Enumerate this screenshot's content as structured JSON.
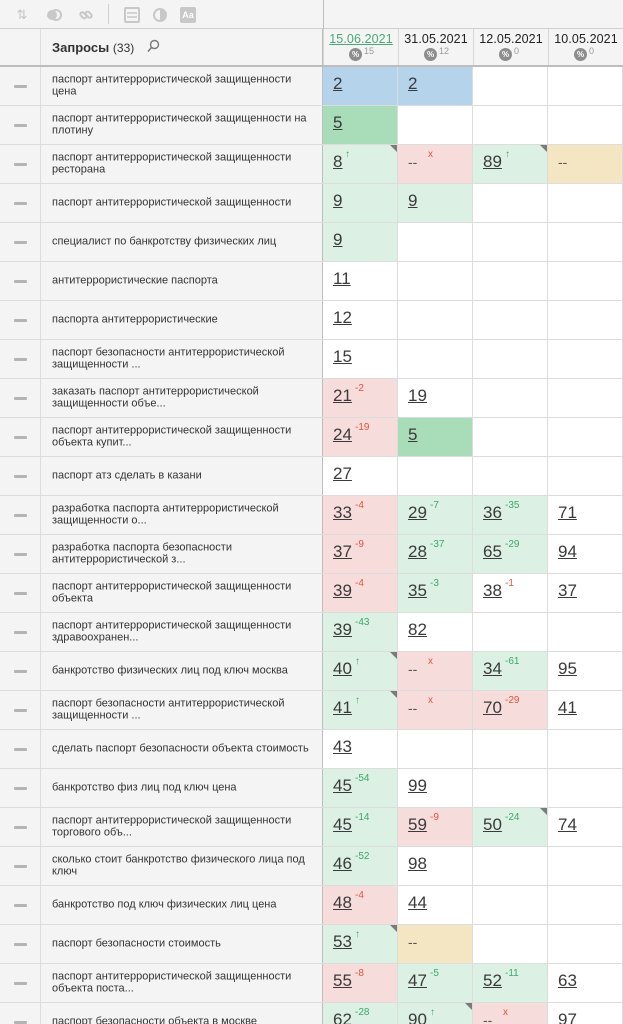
{
  "toolbar": {
    "icons": [
      "sort-icon",
      "toggle-icon",
      "link-icon",
      "table-icon",
      "contrast-icon",
      "text-icon"
    ]
  },
  "header": {
    "title": "Запросы",
    "count": "(33)",
    "dates": [
      {
        "label": "15.06.2021",
        "count": "15",
        "active": true
      },
      {
        "label": "31.05.2021",
        "count": "12",
        "active": false
      },
      {
        "label": "12.05.2021",
        "count": "0",
        "active": false
      },
      {
        "label": "10.05.2021",
        "count": "0",
        "active": false
      }
    ],
    "pct_symbol": "%"
  },
  "rows": [
    {
      "query": "паспорт антитеррористической защищенности цена",
      "cells": [
        {
          "v": "2",
          "bg": "blue"
        },
        {
          "v": "2",
          "bg": "blue"
        },
        null,
        null
      ]
    },
    {
      "query": "паспорт антитеррористической защищенности на плотину",
      "cells": [
        {
          "v": "5",
          "bg": "dgreen"
        },
        null,
        null,
        null
      ]
    },
    {
      "query": "паспорт антитеррористической защищенности ресторана",
      "cells": [
        {
          "v": "8",
          "d": "↑",
          "dt": "pos",
          "bg": "green",
          "flag": true
        },
        {
          "v": "--",
          "d": "x",
          "dt": "x",
          "bg": "red"
        },
        {
          "v": "89",
          "d": "↑",
          "dt": "pos",
          "bg": "green",
          "flag": true
        },
        {
          "v": "--",
          "bg": "beige"
        }
      ]
    },
    {
      "query": "паспорт антитеррористической защищенности",
      "cells": [
        {
          "v": "9",
          "bg": "green"
        },
        {
          "v": "9",
          "bg": "green"
        },
        null,
        null
      ]
    },
    {
      "query": "специалист по банкротству физических лиц",
      "cells": [
        {
          "v": "9",
          "bg": "green"
        },
        null,
        null,
        null
      ]
    },
    {
      "query": "антитеррористические паспорта",
      "cells": [
        {
          "v": "11"
        },
        null,
        null,
        null
      ]
    },
    {
      "query": "паспорта антитеррористические",
      "cells": [
        {
          "v": "12"
        },
        null,
        null,
        null
      ]
    },
    {
      "query": "паспорт безопасности антитеррористической защищенности ...",
      "cells": [
        {
          "v": "15"
        },
        null,
        null,
        null
      ]
    },
    {
      "query": "заказать паспорт антитеррористической защищенности объе...",
      "cells": [
        {
          "v": "21",
          "d": "-2",
          "dt": "neg",
          "bg": "red"
        },
        {
          "v": "19"
        },
        null,
        null
      ]
    },
    {
      "query": "паспорт антитеррористической защищенности объекта купит...",
      "cells": [
        {
          "v": "24",
          "d": "-19",
          "dt": "neg",
          "bg": "red"
        },
        {
          "v": "5",
          "bg": "dgreen"
        },
        null,
        null
      ]
    },
    {
      "query": "паспорт атз сделать в казани",
      "cells": [
        {
          "v": "27"
        },
        null,
        null,
        null
      ]
    },
    {
      "query": "разработка паспорта антитеррористической защищенности о...",
      "cells": [
        {
          "v": "33",
          "d": "-4",
          "dt": "neg",
          "bg": "red"
        },
        {
          "v": "29",
          "d": "-7",
          "dt": "pos",
          "bg": "green"
        },
        {
          "v": "36",
          "d": "-35",
          "dt": "pos",
          "bg": "green"
        },
        {
          "v": "71"
        }
      ]
    },
    {
      "query": "разработка паспорта безопасности антитеррористической з...",
      "cells": [
        {
          "v": "37",
          "d": "-9",
          "dt": "neg",
          "bg": "red"
        },
        {
          "v": "28",
          "d": "-37",
          "dt": "pos",
          "bg": "green"
        },
        {
          "v": "65",
          "d": "-29",
          "dt": "pos",
          "bg": "green"
        },
        {
          "v": "94"
        }
      ]
    },
    {
      "query": "паспорт антитеррористической защищенности объекта",
      "cells": [
        {
          "v": "39",
          "d": "-4",
          "dt": "neg",
          "bg": "red"
        },
        {
          "v": "35",
          "d": "-3",
          "dt": "pos",
          "bg": "green"
        },
        {
          "v": "38",
          "d": "-1",
          "dt": "neg"
        },
        {
          "v": "37"
        }
      ]
    },
    {
      "query": "паспорт антитеррористической защищенности здравоохранен...",
      "cells": [
        {
          "v": "39",
          "d": "-43",
          "dt": "pos",
          "bg": "green"
        },
        {
          "v": "82"
        },
        null,
        null
      ]
    },
    {
      "query": "банкротство физических лиц под ключ москва",
      "cells": [
        {
          "v": "40",
          "d": "↑",
          "dt": "pos",
          "bg": "green",
          "flag": true
        },
        {
          "v": "--",
          "d": "x",
          "dt": "x",
          "bg": "red"
        },
        {
          "v": "34",
          "d": "-61",
          "dt": "pos",
          "bg": "green"
        },
        {
          "v": "95"
        }
      ]
    },
    {
      "query": "паспорт безопасности антитеррористической защищенности ...",
      "cells": [
        {
          "v": "41",
          "d": "↑",
          "dt": "pos",
          "bg": "green",
          "flag": true
        },
        {
          "v": "--",
          "d": "x",
          "dt": "x",
          "bg": "red"
        },
        {
          "v": "70",
          "d": "-29",
          "dt": "neg",
          "bg": "red"
        },
        {
          "v": "41"
        }
      ]
    },
    {
      "query": "сделать паспорт безопасности объекта стоимость",
      "cells": [
        {
          "v": "43"
        },
        null,
        null,
        null
      ]
    },
    {
      "query": "банкротство физ лиц под ключ цена",
      "cells": [
        {
          "v": "45",
          "d": "-54",
          "dt": "pos",
          "bg": "green"
        },
        {
          "v": "99"
        },
        null,
        null
      ]
    },
    {
      "query": "паспорт антитеррористической защищенности торгового объ...",
      "cells": [
        {
          "v": "45",
          "d": "-14",
          "dt": "pos",
          "bg": "green"
        },
        {
          "v": "59",
          "d": "-9",
          "dt": "neg",
          "bg": "red"
        },
        {
          "v": "50",
          "d": "-24",
          "dt": "pos",
          "bg": "green",
          "flag": true
        },
        {
          "v": "74"
        }
      ]
    },
    {
      "query": "сколько стоит банкротство физического лица под ключ",
      "cells": [
        {
          "v": "46",
          "d": "-52",
          "dt": "pos",
          "bg": "green"
        },
        {
          "v": "98"
        },
        null,
        null
      ]
    },
    {
      "query": "банкротство под ключ физических лиц цена",
      "cells": [
        {
          "v": "48",
          "d": "-4",
          "dt": "neg",
          "bg": "red"
        },
        {
          "v": "44"
        },
        null,
        null
      ]
    },
    {
      "query": "паспорт безопасности стоимость",
      "cells": [
        {
          "v": "53",
          "d": "↑",
          "dt": "pos",
          "bg": "green",
          "flag": true
        },
        {
          "v": "--",
          "bg": "beige"
        },
        null,
        null
      ]
    },
    {
      "query": "паспорт антитеррористической защищенности объекта поста...",
      "cells": [
        {
          "v": "55",
          "d": "-8",
          "dt": "neg",
          "bg": "red"
        },
        {
          "v": "47",
          "d": "-5",
          "dt": "pos",
          "bg": "green"
        },
        {
          "v": "52",
          "d": "-11",
          "dt": "pos",
          "bg": "green"
        },
        {
          "v": "63"
        }
      ]
    },
    {
      "query": "паспорт безопасности объекта в москве",
      "cells": [
        {
          "v": "62",
          "d": "-28",
          "dt": "pos",
          "bg": "green"
        },
        {
          "v": "90",
          "d": "↑",
          "dt": "pos",
          "bg": "green",
          "flag": true
        },
        {
          "v": "--",
          "d": "x",
          "dt": "x",
          "bg": "red"
        },
        {
          "v": "97"
        }
      ]
    }
  ]
}
